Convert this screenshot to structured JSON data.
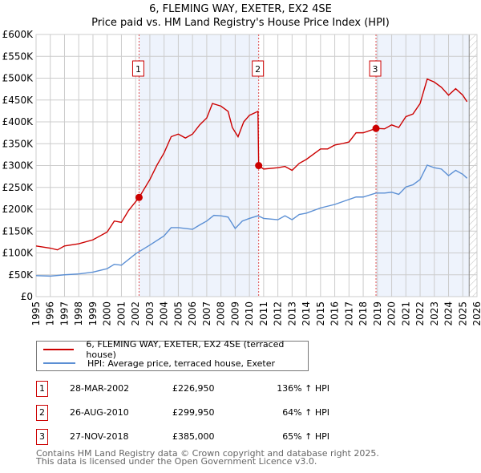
{
  "title": "6, FLEMING WAY, EXETER, EX2 4SE",
  "subtitle": "Price paid vs. HM Land Registry's House Price Index (HPI)",
  "chart_data": {
    "type": "line",
    "ylabel": "",
    "xlabel": "",
    "ylim": [
      0,
      600000
    ],
    "xlim": [
      1995,
      2026
    ],
    "yticks": [
      {
        "v": 0,
        "l": "£0"
      },
      {
        "v": 50000,
        "l": "£50K"
      },
      {
        "v": 100000,
        "l": "£100K"
      },
      {
        "v": 150000,
        "l": "£150K"
      },
      {
        "v": 200000,
        "l": "£200K"
      },
      {
        "v": 250000,
        "l": "£250K"
      },
      {
        "v": 300000,
        "l": "£300K"
      },
      {
        "v": 350000,
        "l": "£350K"
      },
      {
        "v": 400000,
        "l": "£400K"
      },
      {
        "v": 450000,
        "l": "£450K"
      },
      {
        "v": 500000,
        "l": "£500K"
      },
      {
        "v": 550000,
        "l": "£550K"
      },
      {
        "v": 600000,
        "l": "£600K"
      }
    ],
    "xticks": [
      "1995",
      "1996",
      "1997",
      "1998",
      "1999",
      "2000",
      "2001",
      "2002",
      "2003",
      "2004",
      "2005",
      "2006",
      "2007",
      "2008",
      "2009",
      "2010",
      "2011",
      "2012",
      "2013",
      "2014",
      "2015",
      "2016",
      "2017",
      "2018",
      "2019",
      "2020",
      "2021",
      "2022",
      "2023",
      "2024",
      "2025",
      "2026"
    ],
    "grid": true,
    "series": [
      {
        "name": "6, FLEMING WAY, EXETER, EX2 4SE (terraced house)",
        "color": "#cc0000",
        "points": [
          [
            1995,
            116000
          ],
          [
            1996,
            111000
          ],
          [
            1996.5,
            107000
          ],
          [
            1997,
            116000
          ],
          [
            1998,
            121000
          ],
          [
            1999,
            130000
          ],
          [
            2000,
            148000
          ],
          [
            2000.5,
            173000
          ],
          [
            2001,
            170000
          ],
          [
            2001.5,
            197000
          ],
          [
            2002.24,
            226950
          ],
          [
            2003,
            268000
          ],
          [
            2003.5,
            301000
          ],
          [
            2004,
            329000
          ],
          [
            2004.5,
            366000
          ],
          [
            2005,
            372000
          ],
          [
            2005.5,
            363000
          ],
          [
            2006,
            372000
          ],
          [
            2006.5,
            393000
          ],
          [
            2007,
            409000
          ],
          [
            2007.4,
            442000
          ],
          [
            2008,
            436000
          ],
          [
            2008.5,
            424000
          ],
          [
            2008.8,
            387000
          ],
          [
            2009.2,
            366000
          ],
          [
            2009.6,
            400000
          ],
          [
            2010,
            415000
          ],
          [
            2010.6,
            424000
          ],
          [
            2010.65,
            299950
          ],
          [
            2011,
            292000
          ],
          [
            2012,
            295000
          ],
          [
            2012.5,
            298000
          ],
          [
            2013,
            289000
          ],
          [
            2013.5,
            305000
          ],
          [
            2014,
            314000
          ],
          [
            2015,
            338000
          ],
          [
            2015.5,
            338000
          ],
          [
            2016,
            347000
          ],
          [
            2016.5,
            350000
          ],
          [
            2017,
            354000
          ],
          [
            2017.5,
            375000
          ],
          [
            2018,
            375000
          ],
          [
            2018.9,
            385000
          ],
          [
            2019.5,
            384000
          ],
          [
            2020,
            393000
          ],
          [
            2020.5,
            387000
          ],
          [
            2021,
            412000
          ],
          [
            2021.5,
            418000
          ],
          [
            2022,
            442000
          ],
          [
            2022.5,
            498000
          ],
          [
            2023,
            491000
          ],
          [
            2023.5,
            479000
          ],
          [
            2024,
            461000
          ],
          [
            2024.5,
            476000
          ],
          [
            2025,
            461000
          ],
          [
            2025.3,
            446000
          ]
        ]
      },
      {
        "name": "HPI: Average price, terraced house, Exeter",
        "color": "#5b8fd4",
        "points": [
          [
            1995,
            48000
          ],
          [
            1996,
            47000
          ],
          [
            1997,
            50000
          ],
          [
            1998,
            52000
          ],
          [
            1999,
            56000
          ],
          [
            2000,
            64000
          ],
          [
            2000.5,
            74000
          ],
          [
            2001,
            72000
          ],
          [
            2002,
            98000
          ],
          [
            2003,
            118000
          ],
          [
            2004,
            139000
          ],
          [
            2004.5,
            158000
          ],
          [
            2005,
            158000
          ],
          [
            2006,
            154000
          ],
          [
            2006.5,
            164000
          ],
          [
            2007,
            173000
          ],
          [
            2007.5,
            186000
          ],
          [
            2008,
            185000
          ],
          [
            2008.5,
            182000
          ],
          [
            2009,
            156000
          ],
          [
            2009.5,
            173000
          ],
          [
            2010,
            179000
          ],
          [
            2010.6,
            185000
          ],
          [
            2011,
            179000
          ],
          [
            2012,
            176000
          ],
          [
            2012.5,
            185000
          ],
          [
            2013,
            176000
          ],
          [
            2013.5,
            188000
          ],
          [
            2014,
            191000
          ],
          [
            2015,
            203000
          ],
          [
            2016,
            211000
          ],
          [
            2016.7,
            219000
          ],
          [
            2017.5,
            228000
          ],
          [
            2018,
            228000
          ],
          [
            2018.9,
            237000
          ],
          [
            2019.5,
            237000
          ],
          [
            2020,
            239000
          ],
          [
            2020.5,
            234000
          ],
          [
            2021,
            251000
          ],
          [
            2021.5,
            256000
          ],
          [
            2022,
            268000
          ],
          [
            2022.5,
            301000
          ],
          [
            2023,
            295000
          ],
          [
            2023.5,
            292000
          ],
          [
            2024,
            277000
          ],
          [
            2024.5,
            289000
          ],
          [
            2025,
            280000
          ],
          [
            2025.3,
            271000
          ]
        ]
      }
    ],
    "sales": [
      {
        "id": "1",
        "x": 2002.24,
        "y": 226950
      },
      {
        "id": "2",
        "x": 2010.65,
        "y": 299950
      },
      {
        "id": "3",
        "x": 2018.9,
        "y": 385000
      }
    ],
    "shaded": [
      [
        2002.24,
        2010.65
      ],
      [
        2018.9,
        2025.45
      ]
    ],
    "hatched_from": 2025.45
  },
  "legend": {
    "items": [
      "6, FLEMING WAY, EXETER, EX2 4SE (terraced house)",
      "HPI: Average price, terraced house, Exeter"
    ]
  },
  "transactions": [
    {
      "id": "1",
      "date": "28-MAR-2002",
      "price": "£226,950",
      "hpi": "136% ↑ HPI"
    },
    {
      "id": "2",
      "date": "26-AUG-2010",
      "price": "£299,950",
      "hpi": "64% ↑ HPI"
    },
    {
      "id": "3",
      "date": "27-NOV-2018",
      "price": "£385,000",
      "hpi": "65% ↑ HPI"
    }
  ],
  "footer": {
    "line1": "Contains HM Land Registry data © Crown copyright and database right 2025.",
    "line2": "This data is licensed under the Open Government Licence v3.0."
  }
}
